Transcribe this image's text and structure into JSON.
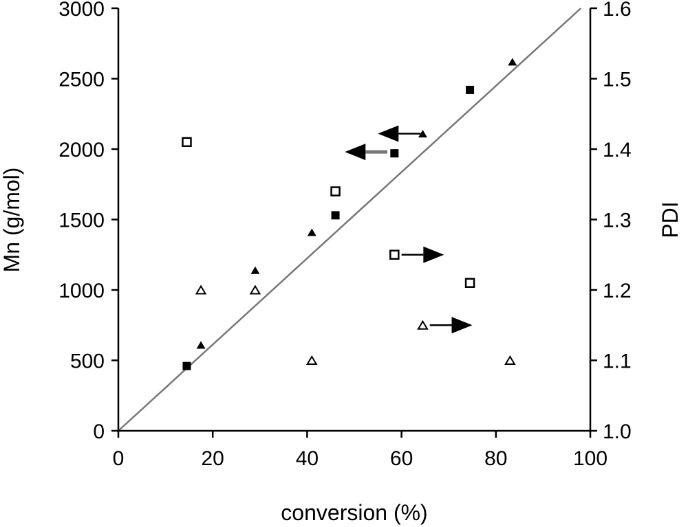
{
  "chart_data": {
    "type": "scatter",
    "title": "",
    "xlabel": "conversion (%)",
    "ylabel_left": "Mn (g/mol)",
    "ylabel_right": "PDI",
    "xlim": [
      0,
      100
    ],
    "ylim_left": [
      0,
      3000
    ],
    "ylim_right": [
      1.0,
      1.6
    ],
    "xticks": [
      "0",
      "20",
      "40",
      "60",
      "80",
      "100"
    ],
    "yticks_left": [
      "0",
      "500",
      "1000",
      "1500",
      "2000",
      "2500",
      "3000"
    ],
    "yticks_right": [
      "1.0",
      "1.1",
      "1.2",
      "1.3",
      "1.4",
      "1.5",
      "1.6"
    ],
    "grid": false,
    "legend": "none",
    "series": [
      {
        "axis": "left",
        "marker": "filled-square",
        "color": "#000000",
        "points": [
          [
            14.5,
            460
          ],
          [
            46,
            1530
          ],
          [
            58.5,
            1970
          ],
          [
            74.5,
            2420
          ]
        ]
      },
      {
        "axis": "left",
        "marker": "filled-triangle",
        "color": "#000000",
        "points": [
          [
            17.5,
            610
          ],
          [
            29,
            1140
          ],
          [
            41,
            1410
          ],
          [
            64.5,
            2110
          ],
          [
            83.5,
            2620
          ]
        ]
      },
      {
        "axis": "right",
        "marker": "open-square",
        "color": "#000000",
        "points": [
          [
            14.5,
            1.41
          ],
          [
            46,
            1.34
          ],
          [
            58.5,
            1.25
          ],
          [
            74.5,
            1.21
          ]
        ]
      },
      {
        "axis": "right",
        "marker": "open-triangle",
        "color": "#000000",
        "points": [
          [
            17.5,
            1.2
          ],
          [
            29,
            1.2
          ],
          [
            41,
            1.1
          ],
          [
            64.5,
            1.15
          ],
          [
            83,
            1.1
          ]
        ]
      }
    ],
    "reference_line": {
      "axis": "left",
      "from": [
        0,
        0
      ],
      "to": [
        98,
        3000
      ],
      "color": "#777777"
    },
    "annotations": [
      {
        "type": "arrow",
        "direction": "left",
        "axis": "left",
        "x_from": 64,
        "x_to": 55,
        "y": 2110,
        "color": "#000000",
        "style": "thin"
      },
      {
        "type": "arrow",
        "direction": "left",
        "axis": "left",
        "x_from": 57,
        "x_to": 48,
        "y": 1980,
        "color": "#777777",
        "style": "thick"
      },
      {
        "type": "arrow",
        "direction": "right",
        "axis": "right",
        "x_from": 60,
        "x_to": 69,
        "y": 1.25,
        "color": "#000000",
        "style": "thin"
      },
      {
        "type": "arrow",
        "direction": "right",
        "axis": "right",
        "x_from": 66,
        "x_to": 75,
        "y": 1.15,
        "color": "#000000",
        "style": "thin"
      }
    ]
  }
}
